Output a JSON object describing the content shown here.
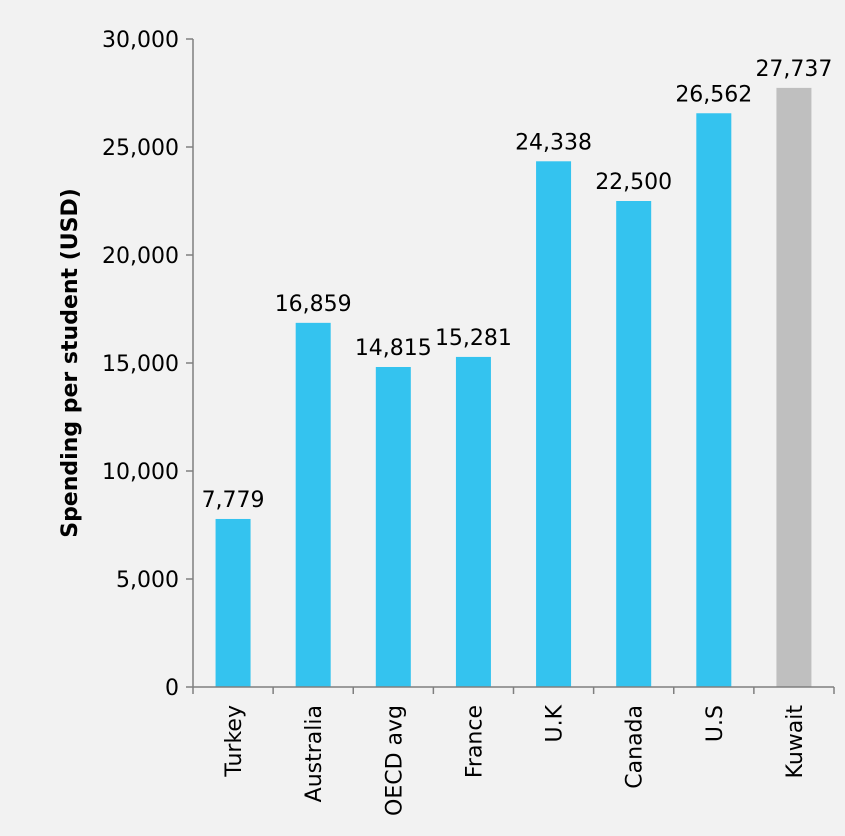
{
  "chart_data": {
    "type": "bar",
    "ylabel": "Spending per student (USD)",
    "ylim": [
      0,
      30000
    ],
    "yticks": [
      0,
      5000,
      10000,
      15000,
      20000,
      25000,
      30000
    ],
    "ytick_labels": [
      "0",
      "5,000",
      "10,000",
      "15,000",
      "20,000",
      "25,000",
      "30,000"
    ],
    "categories": [
      "Turkey",
      "Australia",
      "OECD avg",
      "France",
      "U.K",
      "Canada",
      "U.S",
      "Kuwait"
    ],
    "values": [
      7779,
      16859,
      14815,
      15281,
      24338,
      22500,
      26562,
      27737
    ],
    "value_labels": [
      "7,779",
      "16,859",
      "14,815",
      "15,281",
      "24,338",
      "22,500",
      "26,562",
      "27,737"
    ],
    "bar_colors": [
      "#34c3ef",
      "#34c3ef",
      "#34c3ef",
      "#34c3ef",
      "#34c3ef",
      "#34c3ef",
      "#34c3ef",
      "#bfbfbf"
    ],
    "axis_color": "#7f7f7f",
    "grid": false,
    "legend": "none"
  }
}
